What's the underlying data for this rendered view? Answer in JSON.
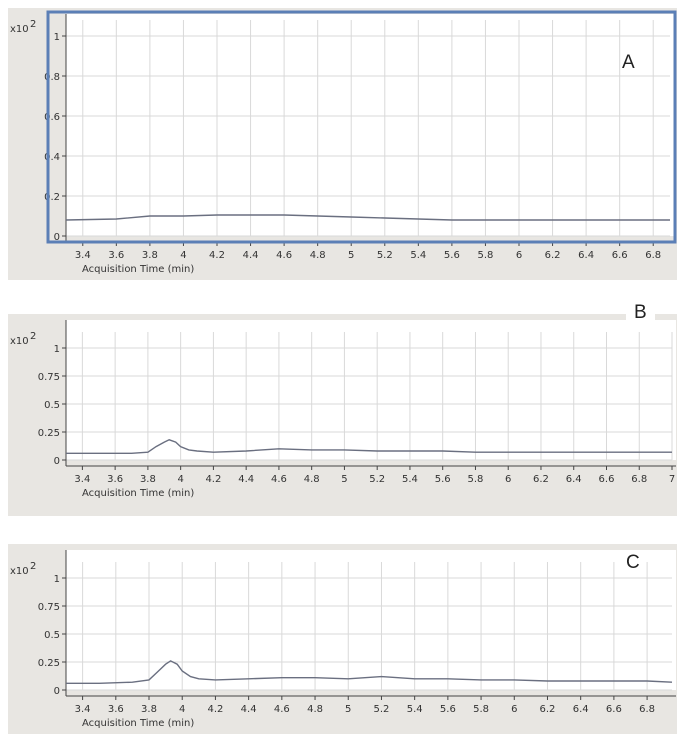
{
  "chart_data": [
    {
      "type": "line",
      "panel_label": "A",
      "y_multiplier_label": "x10",
      "y_multiplier_exp": "2",
      "y_ticks": [
        "0",
        "0.2",
        "0.4",
        "0.6",
        "0.8",
        "1"
      ],
      "ylim": [
        0,
        1
      ],
      "xlim": [
        3.3,
        6.9
      ],
      "x_ticks": [
        "3.4",
        "3.6",
        "3.8",
        "4",
        "4.2",
        "4.4",
        "4.6",
        "4.8",
        "5",
        "5.2",
        "5.4",
        "5.6",
        "5.8",
        "6",
        "6.2",
        "6.4",
        "6.6",
        "6.8"
      ],
      "xlabel": "Acquisition Time (min)",
      "grid": true,
      "series": [
        {
          "x": [
            3.3,
            3.6,
            3.8,
            4.0,
            4.2,
            4.4,
            4.6,
            4.8,
            5.0,
            5.2,
            5.4,
            5.6,
            5.8,
            6.0,
            6.2,
            6.4,
            6.6,
            6.9
          ],
          "y": [
            0.08,
            0.085,
            0.1,
            0.1,
            0.105,
            0.105,
            0.105,
            0.1,
            0.095,
            0.09,
            0.085,
            0.08,
            0.08,
            0.08,
            0.08,
            0.08,
            0.08,
            0.08
          ]
        }
      ]
    },
    {
      "type": "line",
      "panel_label": "B",
      "y_multiplier_label": "x10",
      "y_multiplier_exp": "2",
      "y_ticks": [
        "0",
        "0.25",
        "0.5",
        "0.75",
        "1"
      ],
      "ylim": [
        0,
        1
      ],
      "xlim": [
        3.3,
        7.0
      ],
      "x_ticks": [
        "3.4",
        "3.6",
        "3.8",
        "4",
        "4.2",
        "4.4",
        "4.6",
        "4.8",
        "5",
        "5.2",
        "5.4",
        "5.6",
        "5.8",
        "6",
        "6.2",
        "6.4",
        "6.6",
        "6.8",
        "7"
      ],
      "xlabel": "Acquisition Time (min)",
      "grid": true,
      "series": [
        {
          "x": [
            3.3,
            3.5,
            3.7,
            3.8,
            3.85,
            3.9,
            3.93,
            3.97,
            4.0,
            4.05,
            4.1,
            4.2,
            4.4,
            4.6,
            4.8,
            5.0,
            5.2,
            5.4,
            5.6,
            5.8,
            6.0,
            6.2,
            6.4,
            6.6,
            6.8,
            7.0
          ],
          "y": [
            0.06,
            0.06,
            0.06,
            0.07,
            0.12,
            0.16,
            0.18,
            0.16,
            0.12,
            0.09,
            0.08,
            0.07,
            0.08,
            0.1,
            0.09,
            0.09,
            0.08,
            0.08,
            0.08,
            0.07,
            0.07,
            0.07,
            0.07,
            0.07,
            0.07,
            0.07
          ]
        }
      ]
    },
    {
      "type": "line",
      "panel_label": "C",
      "y_multiplier_label": "x10",
      "y_multiplier_exp": "2",
      "y_ticks": [
        "0",
        "0.25",
        "0.5",
        "0.75",
        "1"
      ],
      "ylim": [
        0,
        1
      ],
      "xlim": [
        3.3,
        6.95
      ],
      "x_ticks": [
        "3.4",
        "3.6",
        "3.8",
        "4",
        "4.2",
        "4.4",
        "4.6",
        "4.8",
        "5",
        "5.2",
        "5.4",
        "5.6",
        "5.8",
        "6",
        "6.2",
        "6.4",
        "6.6",
        "6.8"
      ],
      "xlabel": "Acquisition Time (min)",
      "grid": true,
      "series": [
        {
          "x": [
            3.3,
            3.5,
            3.7,
            3.8,
            3.85,
            3.9,
            3.93,
            3.97,
            4.0,
            4.05,
            4.1,
            4.2,
            4.4,
            4.6,
            4.8,
            5.0,
            5.2,
            5.4,
            5.6,
            5.8,
            6.0,
            6.2,
            6.4,
            6.6,
            6.8,
            6.95
          ],
          "y": [
            0.06,
            0.06,
            0.07,
            0.09,
            0.16,
            0.23,
            0.26,
            0.23,
            0.17,
            0.12,
            0.1,
            0.09,
            0.1,
            0.11,
            0.11,
            0.1,
            0.12,
            0.1,
            0.1,
            0.09,
            0.09,
            0.08,
            0.08,
            0.08,
            0.08,
            0.07
          ]
        }
      ]
    }
  ]
}
